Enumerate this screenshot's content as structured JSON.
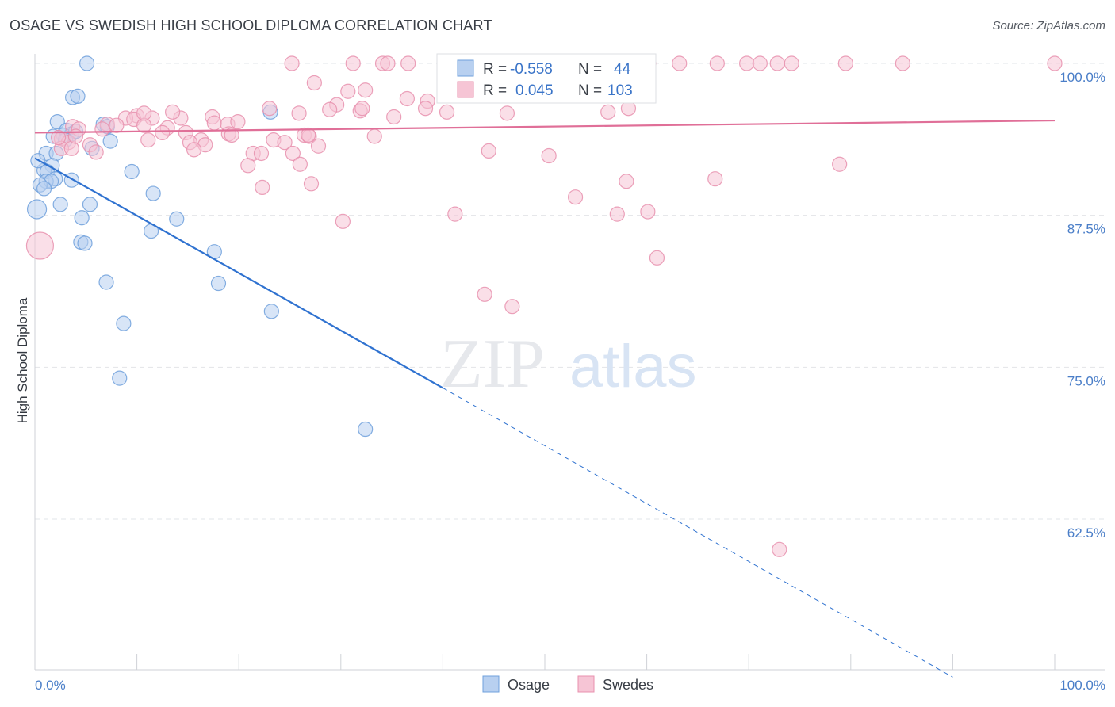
{
  "header": {
    "title": "OSAGE VS SWEDISH HIGH SCHOOL DIPLOMA CORRELATION CHART",
    "source": "Source: ZipAtlas.com"
  },
  "chart_data": {
    "type": "scatter",
    "ylabel": "High School Diploma",
    "xlim": [
      0,
      100
    ],
    "ylim": [
      51,
      101
    ],
    "y_ticks": [
      {
        "value": 100.0,
        "label": "100.0%"
      },
      {
        "value": 87.5,
        "label": "87.5%"
      },
      {
        "value": 75.0,
        "label": "75.0%"
      },
      {
        "value": 62.5,
        "label": "62.5%"
      }
    ],
    "x_tick_labels": [
      {
        "value": 0,
        "label": "0.0%"
      },
      {
        "value": 100,
        "label": "100.0%"
      }
    ],
    "grid": true,
    "watermark": {
      "zip": "ZIP",
      "atlas": "atlas"
    },
    "legend": {
      "r_label": "R =",
      "n_label": "N =",
      "entries": [
        {
          "r": "-0.558",
          "n": "44"
        },
        {
          "r": "0.045",
          "n": "103"
        }
      ]
    },
    "series": [
      {
        "name": "Osage",
        "color": "#6fa0dc",
        "fill": "#b8d0f0",
        "trend": {
          "x0": 0,
          "y0": 92.2,
          "x1": 40,
          "y1": 73.3,
          "dash_x1": 90,
          "dash_y1": 49.5
        },
        "points": [
          [
            5.1,
            100.0
          ],
          [
            3.7,
            97.2
          ],
          [
            4.2,
            97.3
          ],
          [
            2.2,
            95.2
          ],
          [
            6.7,
            95.0
          ],
          [
            3.1,
            94.5
          ],
          [
            3.6,
            94.2
          ],
          [
            2.8,
            94.1
          ],
          [
            1.8,
            94.0
          ],
          [
            4.0,
            94.4
          ],
          [
            7.4,
            93.6
          ],
          [
            5.6,
            93.0
          ],
          [
            1.1,
            92.6
          ],
          [
            2.1,
            92.6
          ],
          [
            1.7,
            91.6
          ],
          [
            0.9,
            91.2
          ],
          [
            1.2,
            91.1
          ],
          [
            9.5,
            91.1
          ],
          [
            2.0,
            90.5
          ],
          [
            1.1,
            90.3
          ],
          [
            3.6,
            90.4
          ],
          [
            1.6,
            90.3
          ],
          [
            0.5,
            90.0
          ],
          [
            0.9,
            89.7
          ],
          [
            11.6,
            89.3
          ],
          [
            0.2,
            88.0
          ],
          [
            2.5,
            88.4
          ],
          [
            5.4,
            88.4
          ],
          [
            4.6,
            87.3
          ],
          [
            13.9,
            87.2
          ],
          [
            11.4,
            86.2
          ],
          [
            4.5,
            85.3
          ],
          [
            4.9,
            85.2
          ],
          [
            17.6,
            84.5
          ],
          [
            7.0,
            82.0
          ],
          [
            18.0,
            81.9
          ],
          [
            23.2,
            79.6
          ],
          [
            8.7,
            78.6
          ],
          [
            8.3,
            74.1
          ],
          [
            32.4,
            69.9
          ],
          [
            23.1,
            96.0
          ],
          [
            7.1,
            94.8
          ],
          [
            3.0,
            93.7
          ],
          [
            0.3,
            92.0
          ]
        ]
      },
      {
        "name": "Swedes",
        "color": "#e890ae",
        "fill": "#f6c5d5",
        "trend": {
          "x0": 0,
          "y0": 94.3,
          "x1": 100,
          "y1": 95.3
        },
        "points": [
          [
            25.2,
            100.0
          ],
          [
            31.2,
            100.0
          ],
          [
            34.1,
            100.0
          ],
          [
            34.6,
            100.0
          ],
          [
            36.6,
            100.0
          ],
          [
            41.5,
            100.0
          ],
          [
            44.0,
            100.0
          ],
          [
            46.9,
            100.0
          ],
          [
            51.3,
            100.0
          ],
          [
            55.9,
            100.0
          ],
          [
            60.2,
            100.0
          ],
          [
            63.2,
            100.0
          ],
          [
            66.9,
            100.0
          ],
          [
            69.8,
            100.0
          ],
          [
            71.1,
            100.0
          ],
          [
            74.2,
            100.0
          ],
          [
            79.5,
            100.0
          ],
          [
            85.1,
            100.0
          ],
          [
            100.0,
            100.0
          ],
          [
            27.4,
            98.4
          ],
          [
            32.4,
            97.8
          ],
          [
            30.7,
            97.7
          ],
          [
            36.5,
            97.1
          ],
          [
            38.5,
            96.9
          ],
          [
            29.6,
            96.6
          ],
          [
            28.9,
            96.2
          ],
          [
            31.9,
            96.1
          ],
          [
            32.1,
            96.3
          ],
          [
            23.0,
            96.3
          ],
          [
            25.9,
            95.9
          ],
          [
            38.3,
            96.3
          ],
          [
            40.4,
            96.0
          ],
          [
            56.2,
            96.0
          ],
          [
            35.2,
            95.6
          ],
          [
            10.0,
            95.7
          ],
          [
            11.5,
            95.5
          ],
          [
            14.3,
            95.5
          ],
          [
            8.9,
            95.5
          ],
          [
            9.7,
            95.4
          ],
          [
            17.4,
            95.6
          ],
          [
            7.1,
            95.0
          ],
          [
            8.0,
            94.9
          ],
          [
            10.7,
            94.9
          ],
          [
            13.0,
            94.7
          ],
          [
            17.6,
            95.1
          ],
          [
            18.9,
            95.0
          ],
          [
            19.9,
            95.2
          ],
          [
            3.7,
            94.8
          ],
          [
            4.3,
            94.6
          ],
          [
            6.6,
            94.6
          ],
          [
            12.5,
            94.3
          ],
          [
            14.8,
            94.3
          ],
          [
            19.0,
            94.2
          ],
          [
            19.3,
            94.1
          ],
          [
            26.4,
            94.1
          ],
          [
            26.9,
            94.0
          ],
          [
            33.3,
            94.0
          ],
          [
            2.6,
            93.8
          ],
          [
            11.1,
            93.7
          ],
          [
            16.3,
            93.7
          ],
          [
            23.4,
            93.7
          ],
          [
            24.5,
            93.5
          ],
          [
            15.2,
            93.5
          ],
          [
            16.7,
            93.3
          ],
          [
            3.3,
            93.5
          ],
          [
            5.4,
            93.3
          ],
          [
            2.6,
            93.0
          ],
          [
            3.6,
            93.0
          ],
          [
            6.0,
            92.7
          ],
          [
            15.6,
            92.9
          ],
          [
            21.4,
            92.6
          ],
          [
            22.2,
            92.6
          ],
          [
            25.3,
            92.6
          ],
          [
            27.8,
            93.2
          ],
          [
            44.5,
            92.8
          ],
          [
            50.4,
            92.4
          ],
          [
            26.0,
            91.7
          ],
          [
            20.9,
            91.6
          ],
          [
            66.7,
            90.5
          ],
          [
            58.0,
            90.3
          ],
          [
            27.1,
            90.1
          ],
          [
            22.3,
            89.8
          ],
          [
            78.9,
            91.7
          ],
          [
            60.1,
            87.8
          ],
          [
            57.1,
            87.6
          ],
          [
            41.2,
            87.6
          ],
          [
            30.2,
            87.0
          ],
          [
            46.3,
            95.9
          ],
          [
            26.8,
            94.1
          ],
          [
            44.7,
            100.0
          ],
          [
            72.8,
            100.0
          ],
          [
            58.5,
            100.0
          ],
          [
            46.8,
            80.0
          ],
          [
            44.1,
            81.0
          ],
          [
            61.0,
            84.0
          ],
          [
            53.0,
            89.0
          ],
          [
            0.5,
            85.0
          ],
          [
            73.0,
            60.0
          ],
          [
            58.2,
            96.3
          ],
          [
            4.0,
            94.0
          ],
          [
            2.3,
            93.9
          ],
          [
            13.5,
            96.0
          ],
          [
            10.7,
            95.9
          ]
        ]
      }
    ],
    "bottom_legend": [
      "Osage",
      "Swedes"
    ]
  }
}
